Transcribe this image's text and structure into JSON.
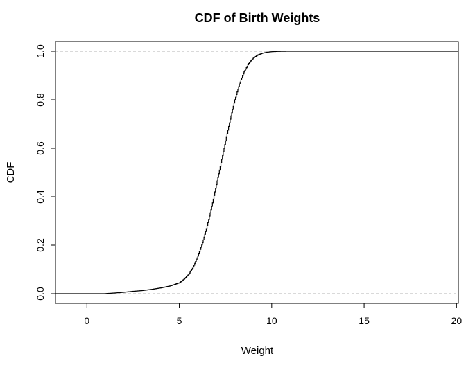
{
  "chart_data": {
    "type": "line",
    "title": "CDF of Birth Weights",
    "xlabel": "Weight",
    "ylabel": "CDF",
    "xlim": [
      -1.7,
      20.1
    ],
    "ylim": [
      -0.04,
      1.04
    ],
    "x_ticks": [
      0,
      5,
      10,
      15,
      20
    ],
    "x_tick_labels": [
      "0",
      "5",
      "10",
      "15",
      "20"
    ],
    "y_ticks": [
      0.0,
      0.2,
      0.4,
      0.6,
      0.8,
      1.0
    ],
    "y_tick_labels": [
      "0.0",
      "0.2",
      "0.4",
      "0.6",
      "0.8",
      "1.0"
    ],
    "reference_lines": [
      {
        "y": 0,
        "style": "dashed",
        "color": "#b3b3b3"
      },
      {
        "y": 1,
        "style": "dashed",
        "color": "#b3b3b3"
      }
    ],
    "series": [
      {
        "style": "step",
        "color": "#000000",
        "x": [
          0.9,
          1.5,
          2.0,
          2.5,
          3.0,
          3.5,
          4.0,
          4.5,
          5.0,
          5.25,
          5.5,
          5.75,
          6.0,
          6.25,
          6.5,
          6.75,
          7.0,
          7.25,
          7.5,
          7.75,
          8.0,
          8.25,
          8.5,
          8.75,
          9.0,
          9.25,
          9.5,
          9.75,
          10.0,
          10.25,
          10.5,
          10.75,
          11.0,
          11.3
        ],
        "y": [
          0.0,
          0.003,
          0.006,
          0.01,
          0.013,
          0.018,
          0.024,
          0.032,
          0.045,
          0.06,
          0.08,
          0.11,
          0.155,
          0.21,
          0.28,
          0.36,
          0.45,
          0.54,
          0.63,
          0.72,
          0.8,
          0.865,
          0.915,
          0.95,
          0.972,
          0.985,
          0.992,
          0.996,
          0.998,
          0.999,
          0.9995,
          0.9998,
          0.9999,
          1.0
        ]
      }
    ],
    "grid": false,
    "colors": {
      "axis": "#000000",
      "reference": "#b3b3b3",
      "line": "#000000"
    }
  }
}
